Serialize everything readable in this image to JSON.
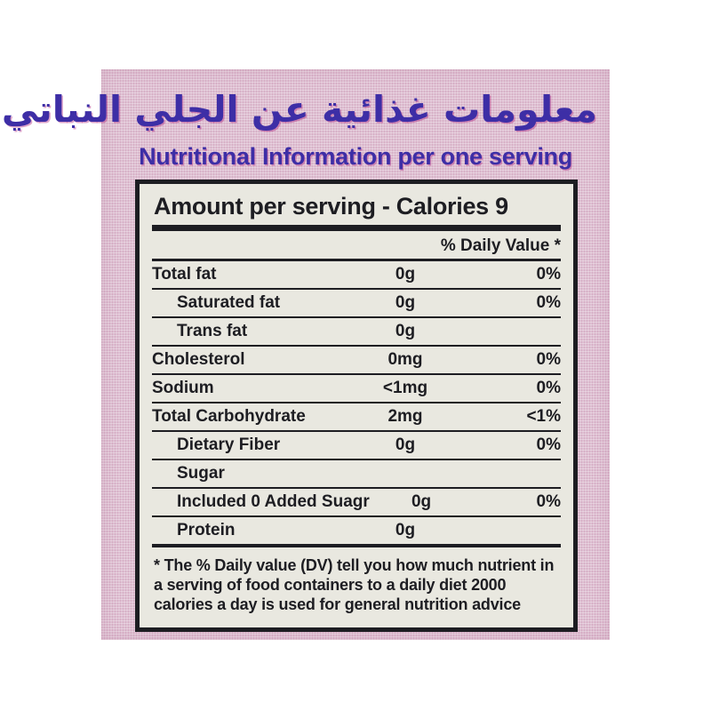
{
  "label": {
    "heading_arabic": "معلومات غذائية عن الجلي النباتي",
    "heading_english": "Nutritional Information per one serving",
    "heading_color": "#3d2ea6",
    "background_color": "#dec0d2"
  },
  "panel": {
    "background_color": "#e9e8e0",
    "ink_color": "#1d1d22",
    "header": "Amount per serving - Calories 9",
    "daily_value_header": "% Daily Value *",
    "rows": [
      {
        "name": "Total fat",
        "amount": "0g",
        "dv": "0%",
        "indent": false
      },
      {
        "name": "Saturated fat",
        "amount": "0g",
        "dv": "0%",
        "indent": true
      },
      {
        "name": "Trans fat",
        "amount": "0g",
        "dv": "",
        "indent": true
      },
      {
        "name": "Cholesterol",
        "amount": "0mg",
        "dv": "0%",
        "indent": false
      },
      {
        "name": "Sodium",
        "amount": "<1mg",
        "dv": "0%",
        "indent": false
      },
      {
        "name": "Total Carbohydrate",
        "amount": "2mg",
        "dv": "<1%",
        "indent": false
      },
      {
        "name": "Dietary Fiber",
        "amount": "0g",
        "dv": "0%",
        "indent": true
      },
      {
        "name": "Sugar",
        "amount": "",
        "dv": "",
        "indent": true
      },
      {
        "name": "Included 0 Added Suagr",
        "amount": "0g",
        "dv": "0%",
        "indent": true
      },
      {
        "name": "Protein",
        "amount": "0g",
        "dv": "",
        "indent": true
      }
    ],
    "footnote": "* The % Daily value (DV) tell you how much nutrient in a serving of food containers to a daily diet 2000 calories a day is used for general nutrition advice"
  }
}
